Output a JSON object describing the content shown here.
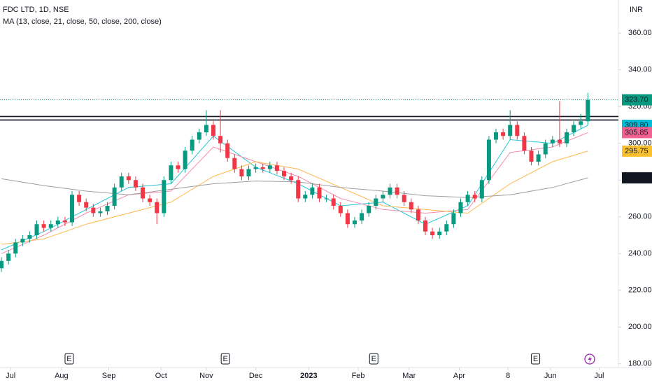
{
  "chart_data": {
    "type": "candlestick",
    "title": "FDC LTD, 1D, NSE",
    "subtitle": "MA (13, close, 21, close, 50, close, 200, close)",
    "currency": "INR",
    "up_color": "#089981",
    "down_color": "#f23645",
    "open": [
      232,
      236,
      240,
      246,
      248,
      250,
      256,
      254,
      256,
      258,
      257,
      272,
      268,
      265,
      262,
      263,
      266,
      276,
      282,
      280,
      276,
      270,
      268,
      262,
      280,
      288,
      286,
      296,
      302,
      306,
      310,
      304,
      300,
      292,
      286,
      282,
      286,
      287,
      286,
      288,
      285,
      282,
      280,
      270,
      272,
      276,
      270,
      270,
      266,
      262,
      256,
      258,
      262,
      266,
      270,
      272,
      276,
      272,
      268,
      264,
      258,
      252,
      250,
      252,
      256,
      262,
      268,
      272,
      270,
      280,
      302,
      306,
      304,
      310,
      304,
      296,
      290,
      294,
      300,
      302,
      300,
      306,
      310,
      312
    ],
    "high": [
      238,
      242,
      248,
      250,
      252,
      258,
      258,
      258,
      260,
      260,
      274,
      274,
      270,
      267,
      265,
      268,
      278,
      284,
      284,
      282,
      278,
      272,
      270,
      282,
      290,
      290,
      298,
      304,
      308,
      318,
      312,
      318,
      302,
      294,
      288,
      288,
      289,
      289,
      290,
      290,
      287,
      284,
      282,
      274,
      278,
      278,
      272,
      272,
      268,
      264,
      260,
      264,
      268,
      272,
      274,
      278,
      278,
      274,
      270,
      266,
      260,
      254,
      254,
      258,
      264,
      270,
      274,
      274,
      282,
      304,
      308,
      308,
      318,
      312,
      306,
      298,
      296,
      302,
      304,
      323,
      308,
      312,
      316,
      327.5
    ],
    "low": [
      230,
      234,
      238,
      244,
      246,
      248,
      252,
      252,
      254,
      255,
      255,
      266,
      263,
      260,
      260,
      261,
      264,
      274,
      278,
      274,
      268,
      266,
      256,
      260,
      278,
      284,
      284,
      294,
      300,
      304,
      302,
      295,
      290,
      284,
      280,
      280,
      284,
      284,
      284,
      283,
      280,
      278,
      268,
      268,
      270,
      268,
      268,
      264,
      260,
      254,
      254,
      256,
      260,
      264,
      268,
      270,
      270,
      266,
      262,
      256,
      250,
      248,
      248,
      250,
      254,
      260,
      266,
      268,
      268,
      278,
      300,
      302,
      302,
      302,
      294,
      288,
      288,
      292,
      298,
      298,
      298,
      304,
      308,
      310
    ],
    "close": [
      236,
      240,
      246,
      248,
      250,
      256,
      254,
      256,
      258,
      257,
      272,
      268,
      265,
      262,
      263,
      266,
      276,
      282,
      280,
      276,
      270,
      268,
      262,
      280,
      288,
      286,
      296,
      302,
      306,
      310,
      304,
      300,
      292,
      286,
      282,
      286,
      287,
      286,
      288,
      285,
      282,
      280,
      270,
      272,
      276,
      270,
      270,
      266,
      262,
      256,
      258,
      262,
      266,
      270,
      272,
      276,
      272,
      268,
      264,
      258,
      252,
      250,
      252,
      256,
      262,
      268,
      272,
      270,
      280,
      302,
      306,
      304,
      310,
      304,
      296,
      290,
      294,
      300,
      302,
      300,
      306,
      310,
      312,
      323.7
    ],
    "series": [
      {
        "name": "MA 13",
        "color": "#26c6da",
        "x": [
          0,
          6,
          12,
          18,
          24,
          30,
          36,
          42,
          48,
          54,
          60,
          66,
          72,
          78,
          83
        ],
        "values": [
          242,
          252,
          264,
          276,
          278,
          304,
          287,
          278,
          266,
          268,
          256,
          266,
          302,
          300,
          309.8
        ]
      },
      {
        "name": "MA 21",
        "color": "#f48fb1",
        "x": [
          0,
          6,
          12,
          18,
          24,
          30,
          36,
          42,
          48,
          54,
          60,
          66,
          72,
          78,
          83
        ],
        "values": [
          240,
          250,
          262,
          272,
          274,
          298,
          290,
          282,
          270,
          264,
          262,
          264,
          295,
          298,
          305.85
        ]
      },
      {
        "name": "MA 50",
        "color": "#ffb74d",
        "x": [
          0,
          6,
          12,
          18,
          24,
          30,
          36,
          42,
          48,
          54,
          60,
          66,
          72,
          78,
          83
        ],
        "values": [
          245,
          248,
          256,
          262,
          268,
          282,
          290,
          286,
          276,
          266,
          264,
          262,
          278,
          290,
          295.75
        ]
      },
      {
        "name": "MA 200",
        "color": "#9e9e9e",
        "x": [
          0,
          6,
          12,
          18,
          24,
          30,
          36,
          42,
          48,
          54,
          60,
          66,
          72,
          78,
          83
        ],
        "values": [
          280.7,
          277,
          274,
          272,
          275,
          278,
          279.5,
          279,
          276,
          274,
          271.5,
          270.5,
          272,
          276,
          281.2
        ]
      }
    ],
    "price_labels": [
      {
        "value": 323.7,
        "label": "323.70",
        "color": "#089981"
      },
      {
        "value": 309.8,
        "label": "309.80",
        "color": "#00bcd4"
      },
      {
        "value": 305.85,
        "label": "305.85",
        "color": "#f06292"
      },
      {
        "value": 295.75,
        "label": "295.75",
        "color": "#fbc02d"
      },
      {
        "value": 281.2,
        "label": "281.20",
        "color": "#131722"
      }
    ],
    "horizontal_lines": [
      314.6,
      312.7
    ],
    "events": [
      {
        "x": 9.6,
        "label": "E"
      },
      {
        "x": 31.7,
        "label": "E"
      },
      {
        "x": 52.7,
        "label": "E"
      },
      {
        "x": 75.6,
        "label": "E"
      }
    ],
    "xlim": [
      -0.2,
      86.93
    ],
    "ylim": [
      178,
      378
    ],
    "xticks": [
      {
        "value": 1.3,
        "label": "Jul"
      },
      {
        "value": 8.5,
        "label": "Aug"
      },
      {
        "value": 15.2,
        "label": "Sep"
      },
      {
        "value": 22.6,
        "label": "Oct"
      },
      {
        "value": 29,
        "label": "Nov"
      },
      {
        "value": 36,
        "label": "Dec"
      },
      {
        "value": 43.5,
        "label": "2023"
      },
      {
        "value": 50.5,
        "label": "Feb"
      },
      {
        "value": 57.7,
        "label": "Mar"
      },
      {
        "value": 64.8,
        "label": "Apr"
      },
      {
        "value": 71.7,
        "label": "8"
      },
      {
        "value": 77.7,
        "label": "Jun"
      },
      {
        "value": 84.6,
        "label": "Jul"
      }
    ],
    "yticks": [
      {
        "value": 180,
        "label": "180.00"
      },
      {
        "value": 200,
        "label": "200.00"
      },
      {
        "value": 220,
        "label": "220.00"
      },
      {
        "value": 240,
        "label": "240.00"
      },
      {
        "value": 260,
        "label": "260.00"
      },
      {
        "value": 280,
        "label": "280.00"
      },
      {
        "value": 300,
        "label": "300.00"
      },
      {
        "value": 320,
        "label": "320.00"
      },
      {
        "value": 340,
        "label": "340.00"
      },
      {
        "value": 360,
        "label": "360.00"
      }
    ]
  }
}
